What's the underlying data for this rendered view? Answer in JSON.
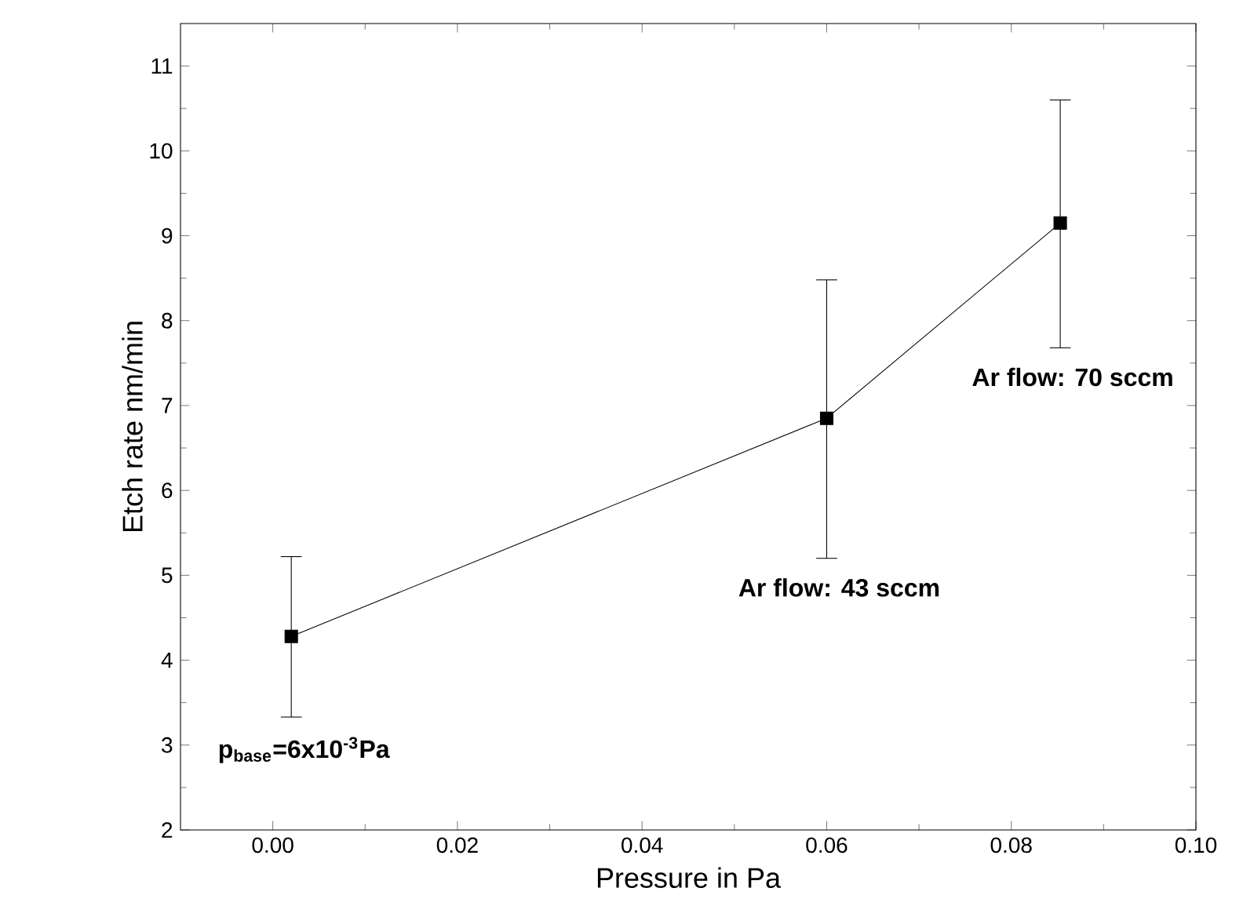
{
  "chart_data": {
    "type": "line",
    "xlabel": "Pressure in Pa",
    "ylabel": "Etch rate nm/min",
    "x": [
      0.002,
      0.06,
      0.0853
    ],
    "values": [
      4.28,
      6.85,
      9.15
    ],
    "errors": [
      [
        3.33,
        5.22
      ],
      [
        5.2,
        8.48
      ],
      [
        7.68,
        10.6
      ]
    ],
    "color": "#000000",
    "marker": "square",
    "line_style": "solid",
    "xlim": [
      -0.01,
      0.1
    ],
    "ylim": [
      2,
      11.5
    ],
    "xticks": [
      {
        "value": 0,
        "label": "0.00"
      },
      {
        "value": 0.02,
        "label": "0.02"
      },
      {
        "value": 0.04,
        "label": "0.04"
      },
      {
        "value": 0.06,
        "label": "0.06"
      },
      {
        "value": 0.08,
        "label": "0.08"
      },
      {
        "value": 0.1,
        "label": "0.10"
      }
    ],
    "yticks": [
      2,
      3,
      4,
      5,
      6,
      7,
      8,
      9,
      10,
      11
    ],
    "annotations": [
      "p$_{base}$=6x10$^{-3}$Pa",
      "Ar flow: 43 sccm",
      "Ar flow: 70 sccm"
    ]
  }
}
